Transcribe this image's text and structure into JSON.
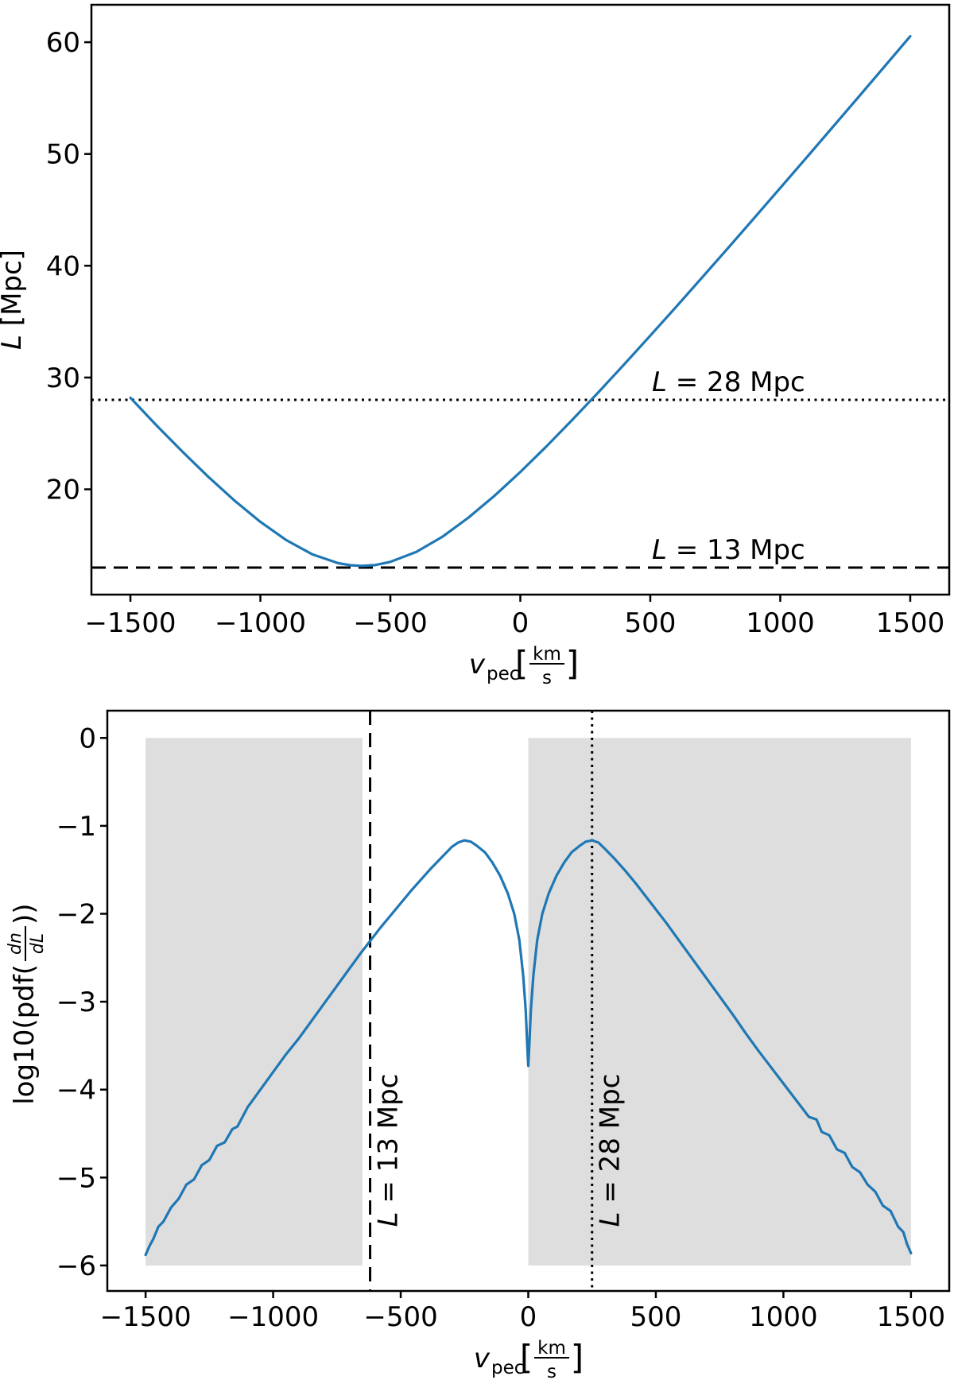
{
  "figure": {
    "background": "#ffffff",
    "curve_color": "#1f77b4",
    "band_color": "#dedede",
    "axis_color": "#000000"
  },
  "chart_data": [
    {
      "type": "line",
      "id": "top",
      "title": "",
      "xlabel": {
        "var": "v",
        "sub": "pec",
        "bracket_open": "[",
        "frac_num": "km",
        "frac_den": "s",
        "bracket_close": "]"
      },
      "ylabel": {
        "var": "L",
        "rest": " [Mpc]"
      },
      "xlim": [
        -1650,
        1650
      ],
      "ylim": [
        10.58,
        63.35
      ],
      "grid": false,
      "legend": "none",
      "xticks": {
        "values": [
          -1500,
          -1000,
          -500,
          0,
          500,
          1000,
          1500
        ],
        "labels": [
          "−1500",
          "−1000",
          "−500",
          "0",
          "500",
          "1000",
          "1500"
        ]
      },
      "yticks": {
        "values": [
          20,
          30,
          40,
          50,
          60
        ],
        "labels": [
          "20",
          "30",
          "40",
          "50",
          "60"
        ]
      },
      "hlines": [
        {
          "y": 28,
          "style": "dotted",
          "label_var": "L",
          "label_rest": " = 28 Mpc"
        },
        {
          "y": 13,
          "style": "dashed",
          "label_var": "L",
          "label_rest": " = 13 Mpc"
        }
      ],
      "series": [
        {
          "name": "L vs v_pec",
          "x": [
            -1500,
            -1400,
            -1300,
            -1200,
            -1100,
            -1000,
            -900,
            -800,
            -700,
            -650,
            -610,
            -560,
            -500,
            -400,
            -300,
            -200,
            -100,
            0,
            100,
            200,
            300,
            400,
            500,
            600,
            700,
            800,
            900,
            1000,
            1100,
            1200,
            1300,
            1400,
            1500
          ],
          "y": [
            28.19,
            25.73,
            23.37,
            21.11,
            19.0,
            17.09,
            15.45,
            14.18,
            13.39,
            13.2,
            13.15,
            13.22,
            13.51,
            14.4,
            15.75,
            17.46,
            19.41,
            21.55,
            23.83,
            26.22,
            28.67,
            31.19,
            33.75,
            36.34,
            38.97,
            41.61,
            44.28,
            46.96,
            49.65,
            52.36,
            55.07,
            57.8,
            60.53
          ]
        }
      ]
    },
    {
      "type": "line",
      "id": "bottom",
      "title": "",
      "xlabel": {
        "var": "v",
        "sub": "pec",
        "bracket_open": "[",
        "frac_num": "km",
        "frac_den": "s",
        "bracket_close": "]"
      },
      "ylabel": {
        "prefix": "log10(pdf(",
        "frac_num": "dn",
        "frac_den": "dL",
        "suffix": "))"
      },
      "xlim": [
        -1650,
        1650
      ],
      "ylim": [
        -6.29,
        0.31
      ],
      "grid": false,
      "legend": "none",
      "xticks": {
        "values": [
          -1500,
          -1000,
          -500,
          0,
          500,
          1000,
          1500
        ],
        "labels": [
          "−1500",
          "−1000",
          "−500",
          "0",
          "500",
          "1000",
          "1500"
        ]
      },
      "yticks": {
        "values": [
          0,
          -1,
          -2,
          -3,
          -4,
          -5,
          -6
        ],
        "labels": [
          "0",
          "−1",
          "−2",
          "−3",
          "−4",
          "−5",
          "−6"
        ]
      },
      "bands": [
        {
          "x0": -1500,
          "x1": -650,
          "y0": 0,
          "y1": -6
        },
        {
          "x0": 0,
          "x1": 1500,
          "y0": 0,
          "y1": -6
        }
      ],
      "vlines": [
        {
          "x": -620,
          "style": "dashed",
          "label_var": "L",
          "label_rest": " = 13 Mpc"
        },
        {
          "x": 250,
          "style": "dotted",
          "label_var": "L",
          "label_rest": " = 28 Mpc"
        }
      ],
      "series": [
        {
          "name": "log10 pdf(dn/dL) vs v_pec",
          "x": [
            -1500,
            -1485,
            -1470,
            -1450,
            -1430,
            -1400,
            -1370,
            -1340,
            -1310,
            -1280,
            -1250,
            -1220,
            -1190,
            -1160,
            -1140,
            -1100,
            -1050,
            -1000,
            -950,
            -900,
            -850,
            -800,
            -750,
            -700,
            -660,
            -620,
            -580,
            -540,
            -500,
            -460,
            -420,
            -380,
            -340,
            -300,
            -275,
            -250,
            -225,
            -200,
            -170,
            -140,
            -110,
            -80,
            -55,
            -35,
            -20,
            -10,
            -4,
            0,
            4,
            10,
            20,
            35,
            55,
            80,
            110,
            140,
            170,
            200,
            225,
            250,
            275,
            300,
            340,
            380,
            420,
            460,
            500,
            540,
            580,
            620,
            660,
            700,
            750,
            800,
            850,
            900,
            950,
            1000,
            1050,
            1100,
            1130,
            1150,
            1180,
            1210,
            1240,
            1270,
            1300,
            1330,
            1360,
            1390,
            1420,
            1450,
            1470,
            1485,
            1500
          ],
          "y": [
            -5.88,
            -5.78,
            -5.7,
            -5.56,
            -5.5,
            -5.34,
            -5.24,
            -5.08,
            -5.02,
            -4.86,
            -4.8,
            -4.64,
            -4.6,
            -4.45,
            -4.42,
            -4.2,
            -4.0,
            -3.8,
            -3.6,
            -3.42,
            -3.22,
            -3.02,
            -2.82,
            -2.62,
            -2.46,
            -2.31,
            -2.16,
            -2.02,
            -1.88,
            -1.74,
            -1.61,
            -1.48,
            -1.36,
            -1.24,
            -1.19,
            -1.165,
            -1.18,
            -1.23,
            -1.3,
            -1.42,
            -1.57,
            -1.77,
            -2.0,
            -2.3,
            -2.7,
            -3.1,
            -3.5,
            -3.73,
            -3.5,
            -3.1,
            -2.7,
            -2.3,
            -2.0,
            -1.77,
            -1.57,
            -1.42,
            -1.3,
            -1.23,
            -1.18,
            -1.165,
            -1.19,
            -1.26,
            -1.38,
            -1.51,
            -1.65,
            -1.8,
            -1.95,
            -2.1,
            -2.26,
            -2.42,
            -2.58,
            -2.74,
            -2.94,
            -3.14,
            -3.35,
            -3.55,
            -3.74,
            -3.93,
            -4.12,
            -4.31,
            -4.34,
            -4.48,
            -4.52,
            -4.68,
            -4.72,
            -4.88,
            -4.94,
            -5.08,
            -5.16,
            -5.32,
            -5.38,
            -5.56,
            -5.62,
            -5.76,
            -5.86
          ]
        }
      ]
    }
  ]
}
